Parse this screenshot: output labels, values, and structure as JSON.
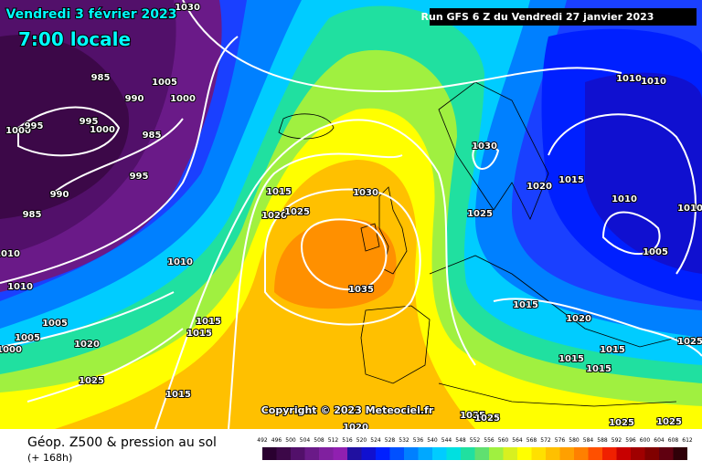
{
  "header": {
    "valid_date": "Vendredi 3 février 2023",
    "local_time": "7:00 locale",
    "run": "Run GFS 6 Z du Vendredi 27 janvier 2023"
  },
  "copyright": "Copyright © 2023 Meteociel.fr",
  "footer": {
    "title": "Géop. Z500 & pression au sol",
    "lead": "(+ 168h)"
  },
  "legend": {
    "ticks": [
      492,
      496,
      500,
      504,
      508,
      512,
      516,
      520,
      524,
      528,
      532,
      536,
      540,
      544,
      548,
      552,
      556,
      560,
      564,
      568,
      572,
      576,
      580,
      584,
      588,
      592,
      596,
      600,
      604,
      608,
      612
    ],
    "colors": [
      "#2a0030",
      "#3c0848",
      "#52106a",
      "#6a1a88",
      "#80209f",
      "#9020b0",
      "#2010a0",
      "#1010d0",
      "#0020ff",
      "#0050ff",
      "#0080ff",
      "#00a8ff",
      "#00ccff",
      "#00e0e0",
      "#20e0a0",
      "#60e070",
      "#a0f040",
      "#d8f020",
      "#ffff00",
      "#ffe000",
      "#ffc000",
      "#ffa000",
      "#ff8000",
      "#ff5000",
      "#f02000",
      "#c80000",
      "#a00000",
      "#800000",
      "#600010",
      "#300008"
    ]
  },
  "isobar_labels": [
    "1030",
    "985",
    "1005",
    "1000",
    "990",
    "995",
    "1000",
    "1000",
    "995",
    "985",
    "995",
    "990",
    "985",
    "1010",
    "1010",
    "1010",
    "1015",
    "1030",
    "1020",
    "1025",
    "1035",
    "1030",
    "1020",
    "1015",
    "1025",
    "1010",
    "1010",
    "1010",
    "1010",
    "1005",
    "1015",
    "1020",
    "1015",
    "1015",
    "1015",
    "1025",
    "1005",
    "1005",
    "1000",
    "1020",
    "1015",
    "1015",
    "1025",
    "1015",
    "1020",
    "1025",
    "1025",
    "1025",
    "1025"
  ]
}
